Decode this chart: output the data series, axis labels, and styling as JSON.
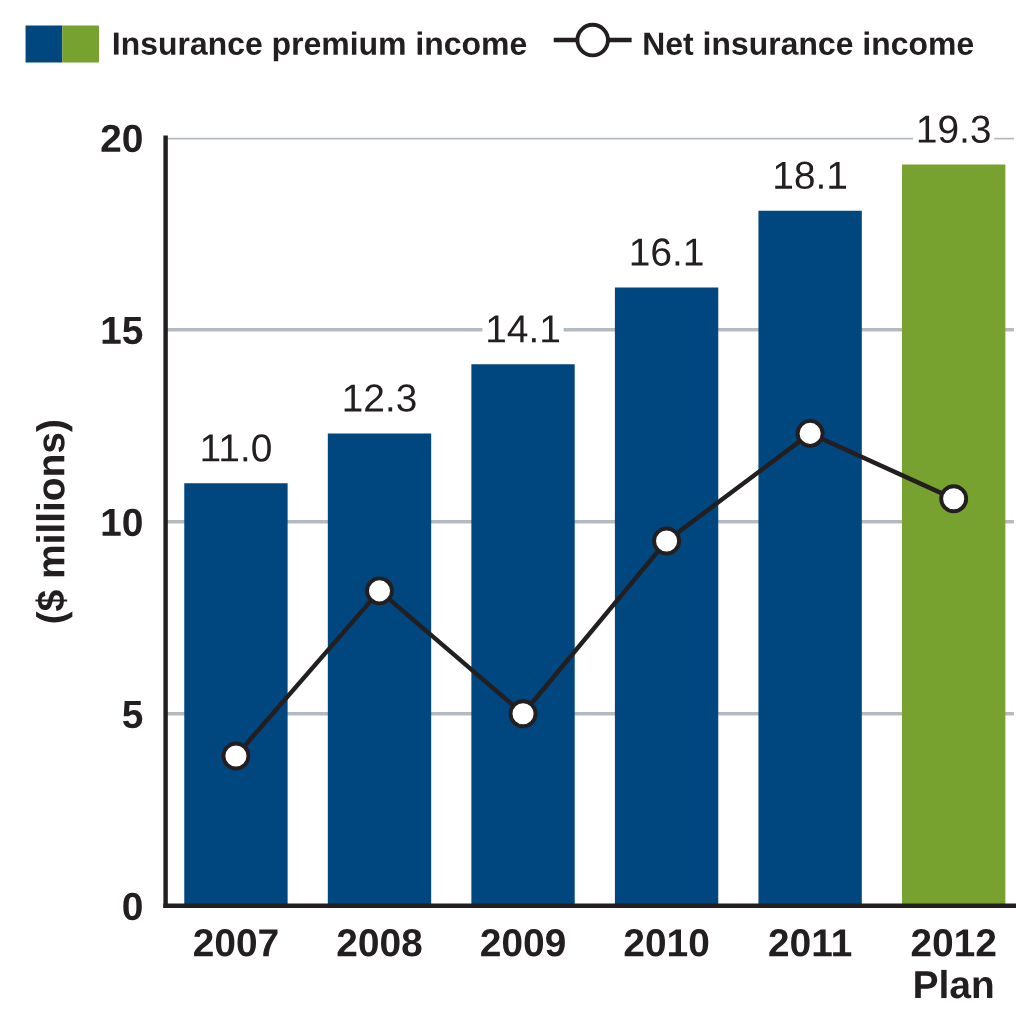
{
  "chart_data": {
    "type": "bar",
    "ylabel": "($ millions)",
    "categories": [
      "2007",
      "2008",
      "2009",
      "2010",
      "2011",
      "2012\nPlan"
    ],
    "series": [
      {
        "name": "Insurance premium income",
        "colors": [
          "#00467f",
          "#00467f",
          "#00467f",
          "#00467f",
          "#00467f",
          "#77a22f"
        ],
        "values": [
          11.0,
          12.3,
          14.1,
          16.1,
          18.1,
          19.3
        ],
        "value_labels": [
          "11.0",
          "12.3",
          "14.1",
          "16.1",
          "18.1",
          "19.3"
        ]
      },
      {
        "type": "line",
        "name": "Net insurance income",
        "color": "#231f20",
        "values": [
          3.9,
          8.2,
          5.0,
          9.5,
          12.3,
          10.6
        ],
        "marker": "circle",
        "line_style": "solid"
      }
    ],
    "ylim": [
      0,
      20
    ],
    "yticks": [
      0,
      5,
      10,
      15,
      20
    ],
    "grid": "y",
    "legend": "top"
  }
}
